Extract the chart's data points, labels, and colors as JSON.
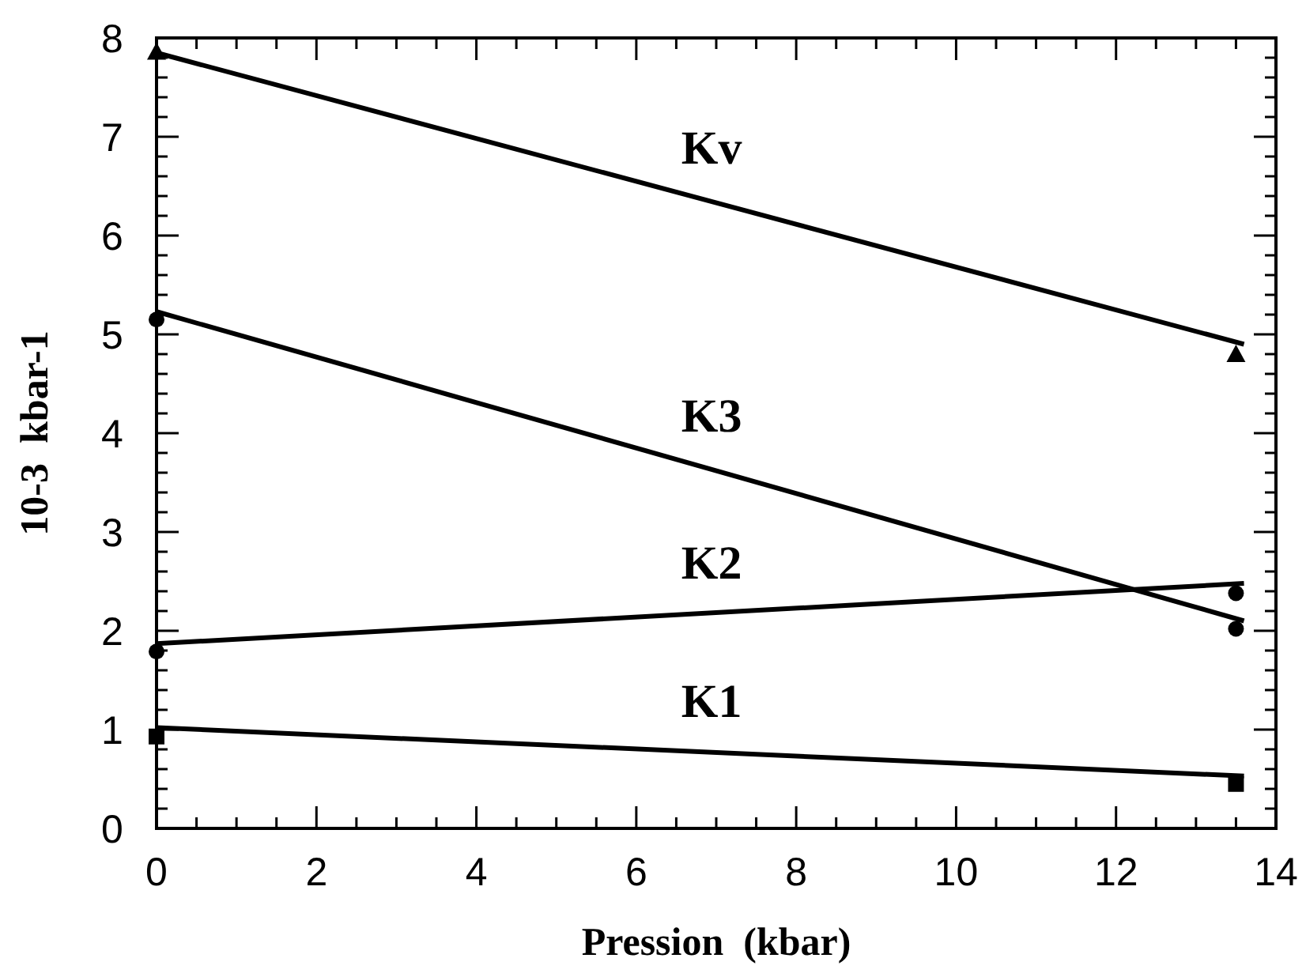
{
  "chart_data": {
    "type": "line",
    "xlabel": "Pression  (kbar)",
    "ylabel": "10-3  kbar-1",
    "xlim": [
      0,
      14
    ],
    "ylim": [
      0,
      8
    ],
    "xticks": [
      0,
      {
        "value": 0.5,
        "label": null
      },
      {
        "value": 1,
        "label": null
      },
      {
        "value": 1.5,
        "label": null
      },
      2,
      {
        "value": 2.5,
        "label": null
      },
      {
        "value": 3,
        "label": null
      },
      {
        "value": 3.5,
        "label": null
      },
      4,
      {
        "value": 4.5,
        "label": null
      },
      {
        "value": 5,
        "label": null
      },
      {
        "value": 5.5,
        "label": null
      },
      6,
      {
        "value": 6.5,
        "label": null
      },
      {
        "value": 7,
        "label": null
      },
      {
        "value": 7.5,
        "label": null
      },
      8,
      {
        "value": 8.5,
        "label": null
      },
      {
        "value": 9,
        "label": null
      },
      {
        "value": 9.5,
        "label": null
      },
      10,
      {
        "value": 10.5,
        "label": null
      },
      {
        "value": 11,
        "label": null
      },
      {
        "value": 11.5,
        "label": null
      },
      12,
      {
        "value": 12.5,
        "label": null
      },
      {
        "value": 13,
        "label": null
      },
      {
        "value": 13.5,
        "label": null
      },
      14
    ],
    "yticks": [
      0,
      {
        "value": 0.2,
        "label": null
      },
      {
        "value": 0.4,
        "label": null
      },
      {
        "value": 0.6,
        "label": null
      },
      {
        "value": 0.8,
        "label": null
      },
      1,
      {
        "value": 1.2,
        "label": null
      },
      {
        "value": 1.4,
        "label": null
      },
      {
        "value": 1.6,
        "label": null
      },
      {
        "value": 1.8,
        "label": null
      },
      2,
      {
        "value": 2.2,
        "label": null
      },
      {
        "value": 2.4,
        "label": null
      },
      {
        "value": 2.6,
        "label": null
      },
      {
        "value": 2.8,
        "label": null
      },
      3,
      {
        "value": 3.2,
        "label": null
      },
      {
        "value": 3.4,
        "label": null
      },
      {
        "value": 3.6,
        "label": null
      },
      {
        "value": 3.8,
        "label": null
      },
      4,
      {
        "value": 4.2,
        "label": null
      },
      {
        "value": 4.4,
        "label": null
      },
      {
        "value": 4.6,
        "label": null
      },
      {
        "value": 4.8,
        "label": null
      },
      5,
      {
        "value": 5.2,
        "label": null
      },
      {
        "value": 5.4,
        "label": null
      },
      {
        "value": 5.6,
        "label": null
      },
      {
        "value": 5.8,
        "label": null
      },
      6,
      {
        "value": 6.2,
        "label": null
      },
      {
        "value": 6.4,
        "label": null
      },
      {
        "value": 6.6,
        "label": null
      },
      {
        "value": 6.8,
        "label": null
      },
      7,
      {
        "value": 7.2,
        "label": null
      },
      {
        "value": 7.4,
        "label": null
      },
      {
        "value": 7.6,
        "label": null
      },
      {
        "value": 7.8,
        "label": null
      },
      8
    ],
    "grid": false,
    "line_style": "solid",
    "series": [
      {
        "name": "Kv",
        "color": "#000000",
        "x": [
          0,
          13.6
        ],
        "values": [
          7.85,
          4.9
        ],
        "marker": "none"
      },
      {
        "type": "scatter",
        "color": "#000000",
        "x": [
          0,
          13.5
        ],
        "values": [
          7.86,
          4.8
        ],
        "marker": "triangle"
      },
      {
        "name": "K3",
        "color": "#000000",
        "x": [
          0,
          13.6
        ],
        "values": [
          5.23,
          2.1
        ],
        "marker": "none"
      },
      {
        "type": "scatter",
        "color": "#000000",
        "x": [
          0,
          13.5
        ],
        "values": [
          5.15,
          2.02
        ],
        "marker": "circle"
      },
      {
        "name": "K2",
        "color": "#000000",
        "x": [
          0,
          13.6
        ],
        "values": [
          1.87,
          2.48
        ],
        "marker": "none"
      },
      {
        "type": "scatter",
        "color": "#000000",
        "x": [
          0,
          13.5
        ],
        "values": [
          1.79,
          2.38
        ],
        "marker": "circle"
      },
      {
        "name": "K1",
        "color": "#000000",
        "x": [
          0,
          13.6
        ],
        "values": [
          1.02,
          0.53
        ],
        "marker": "none"
      },
      {
        "type": "scatter",
        "color": "#000000",
        "x": [
          0,
          13.5
        ],
        "values": [
          0.93,
          0.45
        ],
        "marker": "square"
      }
    ]
  }
}
